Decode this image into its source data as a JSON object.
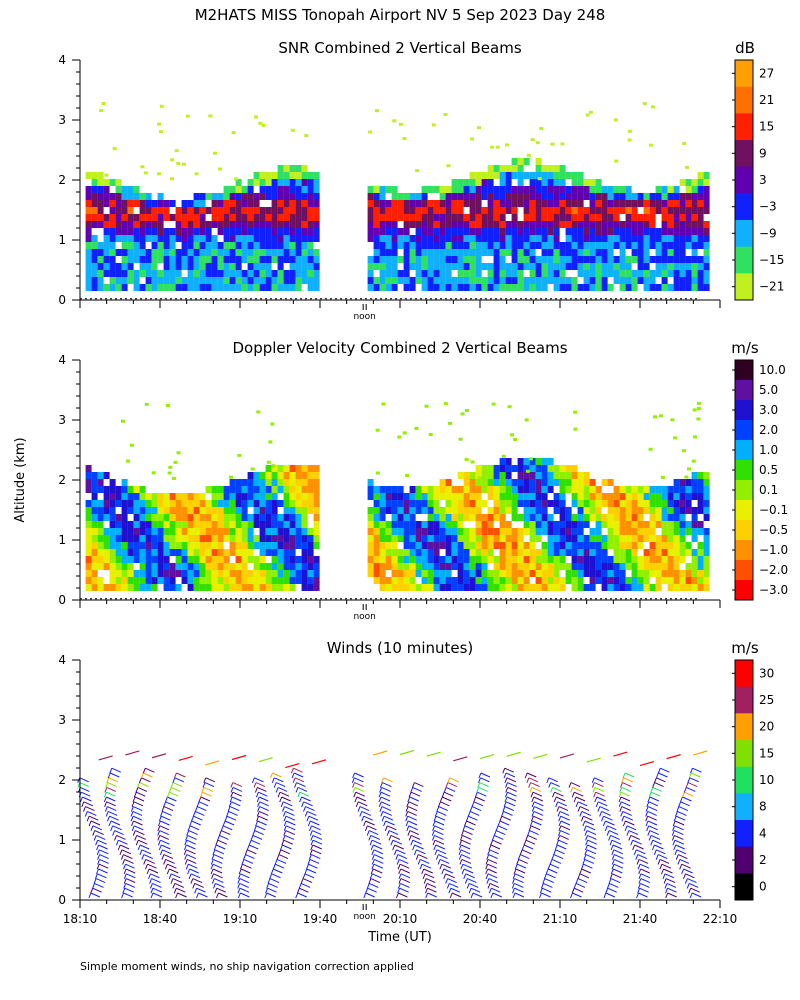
{
  "header": {
    "title": "M2HATS MISS Tonopah Airport NV   5 Sep 2023 Day 248",
    "ylabel": "Altitude (km)",
    "xlabel": "Time (UT)",
    "footnote": "Simple moment winds, no ship navigation correction applied"
  },
  "chart_data": [
    {
      "type": "heatmap",
      "title": "SNR Combined 2 Vertical Beams",
      "ylabel": "Altitude (km)",
      "ylim": [
        0,
        4
      ],
      "yticks": [
        "0",
        "1",
        "2",
        "3",
        "4"
      ],
      "x_range_hours_ut": [
        18.1667,
        22.1667
      ],
      "data_gap_ut": [
        "19:40",
        "19:57"
      ],
      "noon_marker": {
        "label": "noon",
        "time_ut": "19:59"
      },
      "colorbar": {
        "unit": "dB",
        "labels": [
          "27",
          "21",
          "15",
          "9",
          "3",
          "−3",
          "−9",
          "−15",
          "−21"
        ],
        "colors": [
          "#ffa000",
          "#ff7000",
          "#ff2000",
          "#701060",
          "#6000b0",
          "#1020ff",
          "#10b0ff",
          "#30e060",
          "#c0f020"
        ]
      },
      "top_of_echo_km": 1.9
    },
    {
      "type": "heatmap",
      "title": "Doppler Velocity Combined 2 Vertical Beams",
      "ylabel": "Altitude (km)",
      "ylim": [
        0,
        4
      ],
      "yticks": [
        "0",
        "1",
        "2",
        "3",
        "4"
      ],
      "x_range_hours_ut": [
        18.1667,
        22.1667
      ],
      "data_gap_ut": [
        "19:40",
        "19:57"
      ],
      "noon_marker": {
        "label": "noon",
        "time_ut": "19:59"
      },
      "colorbar": {
        "unit": "m/s",
        "labels": [
          "10.0",
          "5.0",
          "3.0",
          "2.0",
          "1.0",
          "0.5",
          "0.1",
          "−0.1",
          "−0.5",
          "−1.0",
          "−2.0",
          "−3.0"
        ],
        "colors": [
          "#300020",
          "#6010a0",
          "#2010d0",
          "#0040ff",
          "#00b0ff",
          "#30e000",
          "#90f000",
          "#e8f000",
          "#ffd000",
          "#ff9000",
          "#ff5000",
          "#ff0000"
        ]
      },
      "top_of_echo_km": 1.95
    },
    {
      "type": "barbs",
      "title": "Winds (10 minutes)",
      "ylabel": "Altitude (km)",
      "xlabel": "Time (UT)",
      "ylim": [
        0,
        4
      ],
      "yticks": [
        "0",
        "1",
        "2",
        "3",
        "4"
      ],
      "xticks": [
        "18:10",
        "18:40",
        "19:10",
        "19:40",
        "20:10",
        "20:40",
        "21:10",
        "21:40",
        "22:10"
      ],
      "x_range_hours_ut": [
        18.1667,
        22.1667
      ],
      "noon_marker": {
        "label": "noon",
        "time_ut": "19:59"
      },
      "profile_interval_minutes": 10,
      "profile_times_ut": [
        "18:17",
        "18:27",
        "18:37",
        "18:47",
        "18:57",
        "19:07",
        "19:17",
        "19:27",
        "19:37",
        "20:00",
        "20:10",
        "20:20",
        "20:30",
        "20:40",
        "20:50",
        "21:00",
        "21:10",
        "21:20",
        "21:30",
        "21:40",
        "21:50",
        "22:00"
      ],
      "colorbar": {
        "unit": "m/s",
        "labels": [
          "30",
          "25",
          "20",
          "15",
          "10",
          "8",
          "4",
          "2",
          "0"
        ],
        "colors": [
          "#ff0000",
          "#a02060",
          "#ffa000",
          "#80e000",
          "#20e060",
          "#10b0ff",
          "#1020ff",
          "#500070",
          "#000000"
        ]
      },
      "max_height_km": 2.4
    }
  ]
}
